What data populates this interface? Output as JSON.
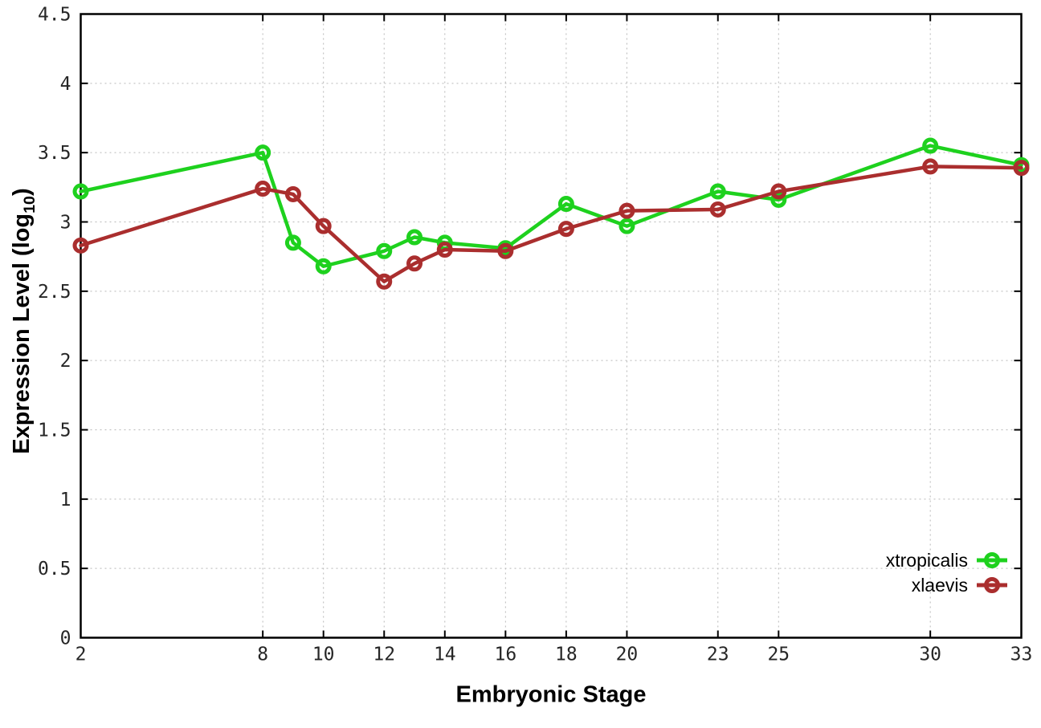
{
  "chart_data": {
    "type": "line",
    "title": "",
    "xlabel": "Embryonic Stage",
    "ylabel": "Expression Level (log10)",
    "ylabel_parts": {
      "prefix": "Expression Level (log",
      "sub": "10",
      "suffix": ")"
    },
    "xlim": [
      2,
      33
    ],
    "ylim": [
      0,
      4.5
    ],
    "x_ticks": [
      2,
      8,
      10,
      12,
      14,
      16,
      18,
      20,
      23,
      25,
      30,
      33
    ],
    "y_ticks": [
      0,
      0.5,
      1,
      1.5,
      2,
      2.5,
      3,
      3.5,
      4,
      4.5
    ],
    "grid": true,
    "legend_position": "inside-bottom-right",
    "x": [
      2,
      8,
      9,
      10,
      12,
      13,
      14,
      16,
      18,
      20,
      23,
      25,
      30,
      33
    ],
    "series": [
      {
        "name": "xtropicalis",
        "color": "#1ed11e",
        "values": [
          3.22,
          3.5,
          2.85,
          2.68,
          2.79,
          2.89,
          2.85,
          2.81,
          3.13,
          2.97,
          3.22,
          3.16,
          3.55,
          3.41
        ]
      },
      {
        "name": "xlaevis",
        "color": "#aa2e2e",
        "values": [
          2.83,
          3.24,
          3.2,
          2.97,
          2.57,
          2.7,
          2.8,
          2.79,
          2.95,
          3.08,
          3.09,
          3.22,
          3.4,
          3.39
        ]
      }
    ]
  },
  "style": {
    "background": "#ffffff",
    "grid_color": "#b8b8b8",
    "axis_color": "#000000",
    "tick_label_color": "#262626"
  }
}
